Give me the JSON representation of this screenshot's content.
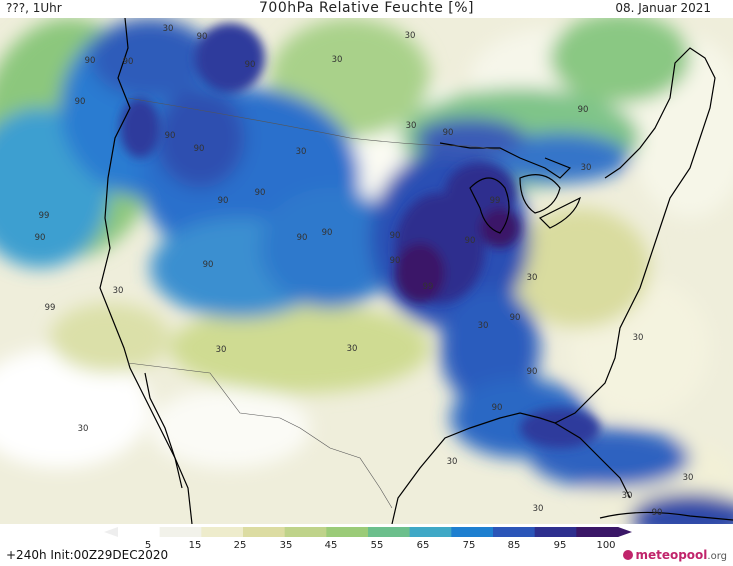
{
  "header": {
    "left": "???, 1Uhr",
    "title": "700hPa Relative Feuchte [%]",
    "date": "08. Januar 2021"
  },
  "footer": {
    "forecast": "+240h Init:00Z29DEC2020",
    "logo_main": "meteopool",
    "logo_suffix": ".org"
  },
  "colorbar": {
    "ticks": [
      "5",
      "15",
      "25",
      "35",
      "45",
      "55",
      "65",
      "75",
      "85",
      "95",
      "100"
    ],
    "colors": [
      "#ffffff",
      "#f2f2ea",
      "#eeeccc",
      "#dcdca2",
      "#bfd38a",
      "#9bcb78",
      "#6cbf8c",
      "#3fa8c6",
      "#1e7fd0",
      "#2b55b8",
      "#2e2f8e",
      "#3a1767"
    ]
  },
  "contour_labels": [
    {
      "text": "30"
    },
    {
      "text": "90"
    },
    {
      "text": "90"
    },
    {
      "text": "90"
    },
    {
      "text": "90"
    },
    {
      "text": "30"
    },
    {
      "text": "30"
    },
    {
      "text": "90"
    },
    {
      "text": "90"
    },
    {
      "text": "90"
    },
    {
      "text": "90"
    },
    {
      "text": "30"
    },
    {
      "text": "90"
    },
    {
      "text": "90"
    },
    {
      "text": "90"
    },
    {
      "text": "99"
    },
    {
      "text": "90"
    },
    {
      "text": "90"
    },
    {
      "text": "90"
    },
    {
      "text": "90"
    },
    {
      "text": "99"
    },
    {
      "text": "90"
    },
    {
      "text": "90"
    },
    {
      "text": "99"
    },
    {
      "text": "90"
    },
    {
      "text": "30"
    },
    {
      "text": "99"
    },
    {
      "text": "30"
    },
    {
      "text": "90"
    },
    {
      "text": "30"
    },
    {
      "text": "30"
    },
    {
      "text": "30"
    },
    {
      "text": "30"
    },
    {
      "text": "90"
    },
    {
      "text": "90"
    },
    {
      "text": "30"
    },
    {
      "text": "30"
    },
    {
      "text": "30"
    },
    {
      "text": "30"
    },
    {
      "text": "30"
    },
    {
      "text": "90"
    },
    {
      "text": "30"
    },
    {
      "text": "30"
    }
  ]
}
